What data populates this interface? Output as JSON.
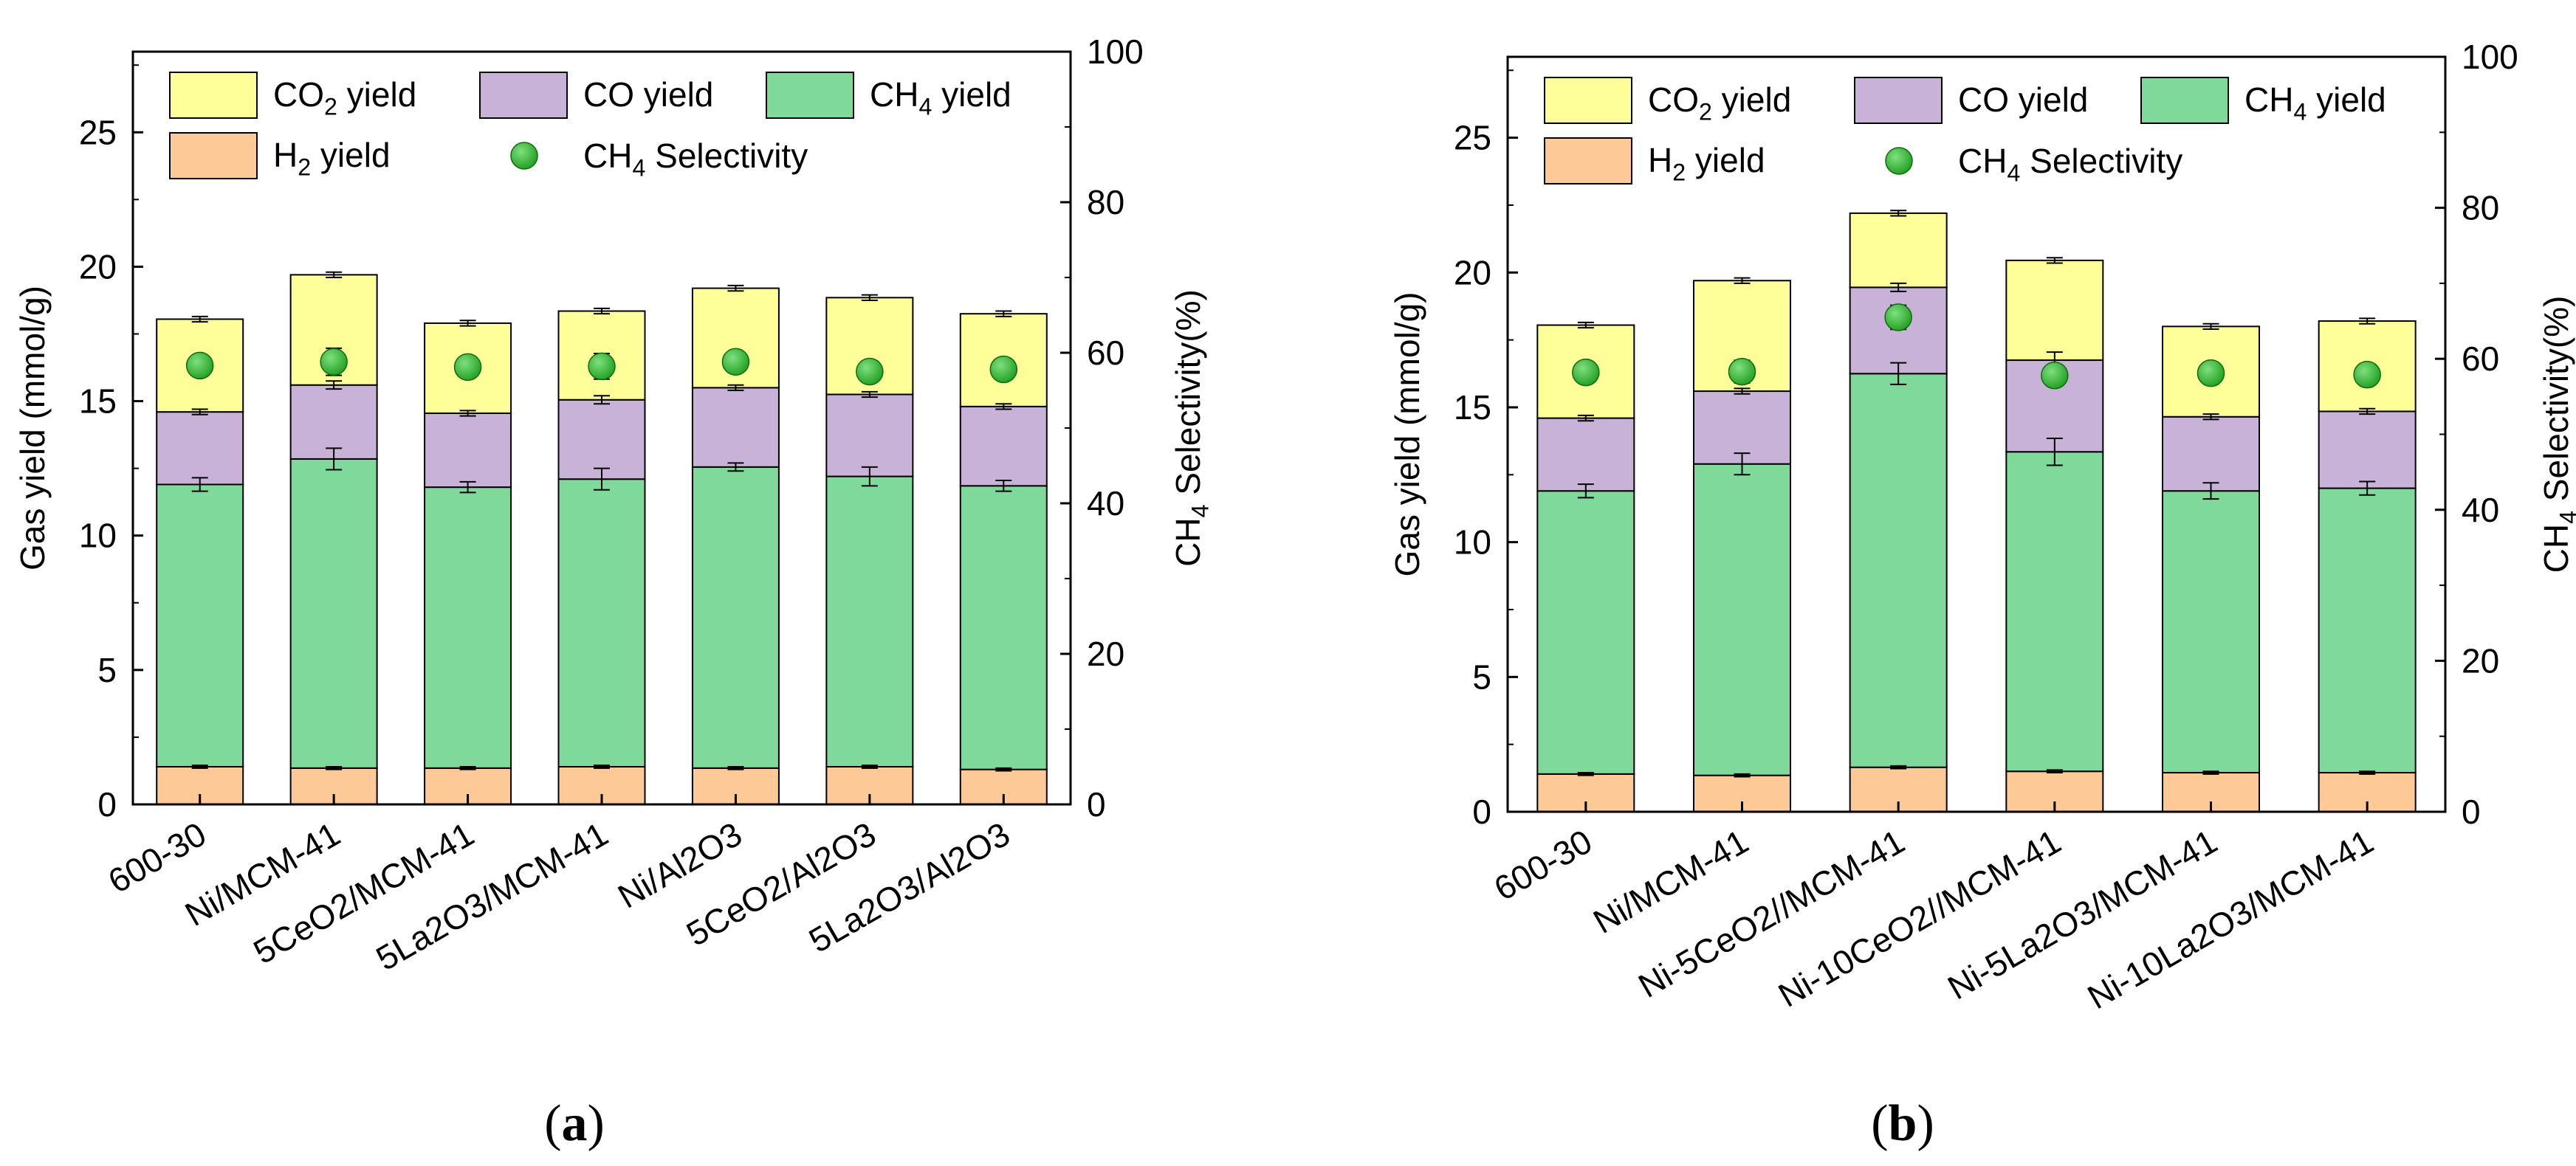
{
  "colors": {
    "h2": "#fcc997",
    "ch4": "#7fd99b",
    "co": "#c9b2d8",
    "co2": "#ffff99",
    "selectivity": "#1f9e1f",
    "selectivity_highlight": "#7fe07f",
    "edge": "#000000"
  },
  "legend": {
    "co2": {
      "main": "CO",
      "sub": "2",
      "rest": " yield"
    },
    "co": {
      "main": "CO yield"
    },
    "ch4": {
      "main": "CH",
      "sub": "4",
      "rest": " yield"
    },
    "h2": {
      "main": "H",
      "sub": "2",
      "rest": " yield"
    },
    "sel": {
      "main": "CH",
      "sub": "4",
      "rest": " Selectivity"
    }
  },
  "chart_data": [
    {
      "type": "bar",
      "stacked": true,
      "panel_label": "a",
      "categories": [
        "600-30",
        "Ni/MCM-41",
        "5CeO2/MCM-41",
        "5La2O3/MCM-41",
        "Ni/Al2O3",
        "5CeO2/Al2O3",
        "5La2O3/Al2O3"
      ],
      "series": [
        {
          "key": "h2",
          "name": "H2 yield",
          "values": [
            1.4,
            1.35,
            1.35,
            1.4,
            1.35,
            1.4,
            1.3
          ],
          "errors": [
            0.05,
            0.05,
            0.05,
            0.05,
            0.05,
            0.05,
            0.05
          ]
        },
        {
          "key": "ch4",
          "name": "CH4 yield",
          "values": [
            10.5,
            11.5,
            10.45,
            10.7,
            11.2,
            10.8,
            10.55
          ],
          "errors": [
            0.25,
            0.4,
            0.2,
            0.4,
            0.15,
            0.35,
            0.2
          ]
        },
        {
          "key": "co",
          "name": "CO yield",
          "values": [
            2.7,
            2.75,
            2.75,
            2.95,
            2.95,
            3.05,
            2.95
          ],
          "errors": [
            0.1,
            0.15,
            0.1,
            0.15,
            0.1,
            0.1,
            0.1
          ]
        },
        {
          "key": "co2",
          "name": "CO2 yield",
          "values": [
            3.45,
            4.1,
            3.35,
            3.3,
            3.7,
            3.6,
            3.45
          ],
          "errors": [
            0.1,
            0.1,
            0.1,
            0.1,
            0.1,
            0.1,
            0.1
          ]
        }
      ],
      "selectivity": {
        "name": "CH4 Selectivity",
        "values": [
          58.3,
          58.8,
          58.1,
          58.2,
          58.8,
          57.5,
          57.8
        ],
        "errors": [
          1.3,
          1.8,
          1.3,
          1.7,
          1.3,
          1.4,
          1.3
        ]
      },
      "ylabel": "Gas yield (mmol/g)",
      "ylim": [
        0,
        28
      ],
      "yticks": [
        0,
        5,
        10,
        15,
        20,
        25
      ],
      "y2label": {
        "main": "CH",
        "sub": "4",
        "rest": " Selectivity(%)"
      },
      "y2lim": [
        0,
        100
      ],
      "y2ticks": [
        0,
        20,
        40,
        60,
        80,
        100
      ],
      "legend_position": "top"
    },
    {
      "type": "bar",
      "stacked": true,
      "panel_label": "b",
      "categories": [
        "600-30",
        "Ni/MCM-41",
        "Ni-5CeO2//MCM-41",
        "Ni-10CeO2//MCM-41",
        "Ni-5La2O3/MCM-41",
        "Ni-10La2O3/MCM-41"
      ],
      "series": [
        {
          "key": "h2",
          "name": "H2 yield",
          "values": [
            1.4,
            1.35,
            1.65,
            1.5,
            1.45,
            1.45
          ],
          "errors": [
            0.05,
            0.05,
            0.05,
            0.05,
            0.05,
            0.05
          ]
        },
        {
          "key": "ch4",
          "name": "CH4 yield",
          "values": [
            10.5,
            11.55,
            14.6,
            11.85,
            10.45,
            10.55
          ],
          "errors": [
            0.25,
            0.4,
            0.4,
            0.5,
            0.3,
            0.25
          ]
        },
        {
          "key": "co",
          "name": "CO yield",
          "values": [
            2.7,
            2.7,
            3.2,
            3.4,
            2.75,
            2.85
          ],
          "errors": [
            0.1,
            0.1,
            0.15,
            0.3,
            0.1,
            0.1
          ]
        },
        {
          "key": "co2",
          "name": "CO2 yield",
          "values": [
            3.45,
            4.1,
            2.75,
            3.7,
            3.35,
            3.35
          ],
          "errors": [
            0.1,
            0.1,
            0.1,
            0.1,
            0.1,
            0.1
          ]
        }
      ],
      "selectivity": {
        "name": "CH4 Selectivity",
        "values": [
          58.2,
          58.3,
          65.5,
          57.8,
          58.1,
          57.9
        ],
        "errors": [
          1.3,
          1.5,
          1.6,
          1.3,
          1.3,
          1.3
        ]
      },
      "ylabel": "Gas yield (mmol/g)",
      "ylim": [
        0,
        28
      ],
      "yticks": [
        0,
        5,
        10,
        15,
        20,
        25
      ],
      "y2label": {
        "main": "CH",
        "sub": "4",
        "rest": " Selectivity(%)"
      },
      "y2lim": [
        0,
        100
      ],
      "y2ticks": [
        0,
        20,
        40,
        60,
        80,
        100
      ],
      "legend_position": "top"
    }
  ]
}
